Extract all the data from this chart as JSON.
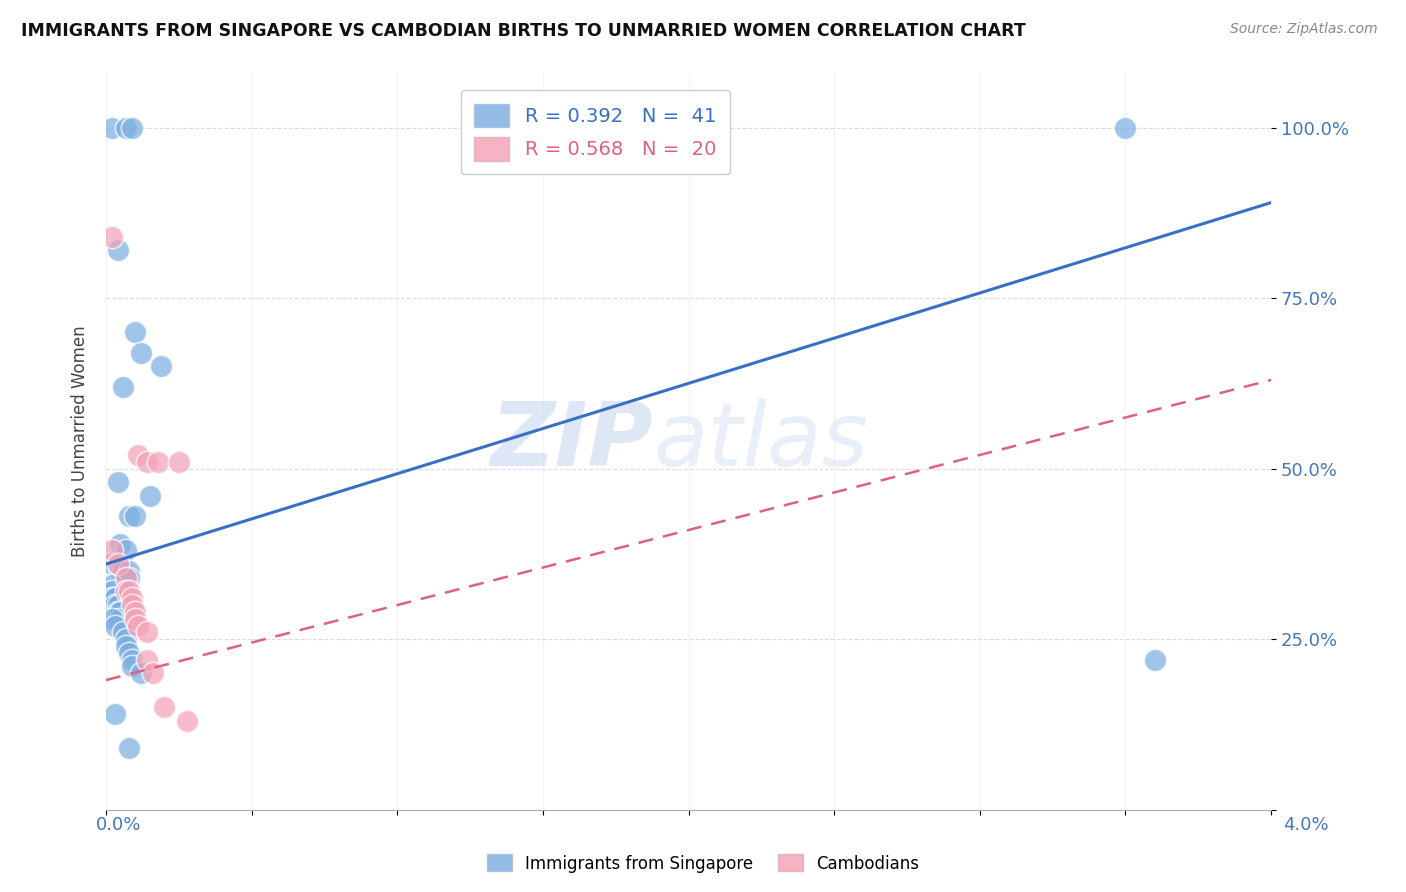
{
  "title": "IMMIGRANTS FROM SINGAPORE VS CAMBODIAN BIRTHS TO UNMARRIED WOMEN CORRELATION CHART",
  "source": "Source: ZipAtlas.com",
  "ylabel": "Births to Unmarried Women",
  "yticks": [
    0.0,
    0.25,
    0.5,
    0.75,
    1.0
  ],
  "ytick_labels": [
    "",
    "25.0%",
    "50.0%",
    "75.0%",
    "100.0%"
  ],
  "xlim": [
    0.0,
    0.04
  ],
  "ylim": [
    0.0,
    1.08
  ],
  "legend_blue_r": "R = 0.392",
  "legend_blue_n": "N =  41",
  "legend_pink_r": "R = 0.568",
  "legend_pink_n": "N =  20",
  "blue_color": "#7AADE0",
  "pink_color": "#F4A0B5",
  "blue_scatter": [
    [
      0.0002,
      1.0
    ],
    [
      0.0007,
      1.0
    ],
    [
      0.0009,
      1.0
    ],
    [
      0.035,
      1.0
    ],
    [
      0.0004,
      0.82
    ],
    [
      0.001,
      0.7
    ],
    [
      0.0012,
      0.67
    ],
    [
      0.0019,
      0.65
    ],
    [
      0.0006,
      0.62
    ],
    [
      0.0015,
      0.46
    ],
    [
      0.0004,
      0.48
    ],
    [
      0.0008,
      0.43
    ],
    [
      0.001,
      0.43
    ],
    [
      0.0005,
      0.39
    ],
    [
      0.0007,
      0.38
    ],
    [
      0.0002,
      0.36
    ],
    [
      0.0005,
      0.35
    ],
    [
      0.0006,
      0.35
    ],
    [
      0.0008,
      0.35
    ],
    [
      0.0008,
      0.34
    ],
    [
      0.0002,
      0.33
    ],
    [
      0.0002,
      0.32
    ],
    [
      0.0002,
      0.31
    ],
    [
      0.0003,
      0.31
    ],
    [
      0.0003,
      0.3
    ],
    [
      0.0004,
      0.3
    ],
    [
      0.0004,
      0.29
    ],
    [
      0.0005,
      0.29
    ],
    [
      0.0005,
      0.28
    ],
    [
      0.0002,
      0.28
    ],
    [
      0.0003,
      0.27
    ],
    [
      0.0006,
      0.26
    ],
    [
      0.0007,
      0.25
    ],
    [
      0.0007,
      0.24
    ],
    [
      0.0008,
      0.23
    ],
    [
      0.0009,
      0.22
    ],
    [
      0.0009,
      0.21
    ],
    [
      0.0012,
      0.2
    ],
    [
      0.0003,
      0.14
    ],
    [
      0.0008,
      0.09
    ],
    [
      0.036,
      0.22
    ]
  ],
  "pink_scatter": [
    [
      0.0002,
      0.84
    ],
    [
      0.0011,
      0.52
    ],
    [
      0.0014,
      0.51
    ],
    [
      0.0018,
      0.51
    ],
    [
      0.0025,
      0.51
    ],
    [
      0.0002,
      0.38
    ],
    [
      0.0004,
      0.36
    ],
    [
      0.0007,
      0.34
    ],
    [
      0.0007,
      0.32
    ],
    [
      0.0008,
      0.32
    ],
    [
      0.0009,
      0.31
    ],
    [
      0.0009,
      0.3
    ],
    [
      0.001,
      0.29
    ],
    [
      0.001,
      0.28
    ],
    [
      0.0011,
      0.27
    ],
    [
      0.0014,
      0.26
    ],
    [
      0.0014,
      0.22
    ],
    [
      0.0016,
      0.2
    ],
    [
      0.002,
      0.15
    ],
    [
      0.0028,
      0.13
    ]
  ],
  "blue_line": [
    0.0,
    0.36,
    0.04,
    0.89
  ],
  "pink_line": [
    0.0,
    0.19,
    0.04,
    0.63
  ],
  "watermark_zip": "ZIP",
  "watermark_atlas": "atlas",
  "background_color": "#FFFFFF",
  "grid_color": "#DDDDDD",
  "xtick_positions": [
    0.0,
    0.005,
    0.01,
    0.015,
    0.02,
    0.025,
    0.03,
    0.035,
    0.04
  ]
}
